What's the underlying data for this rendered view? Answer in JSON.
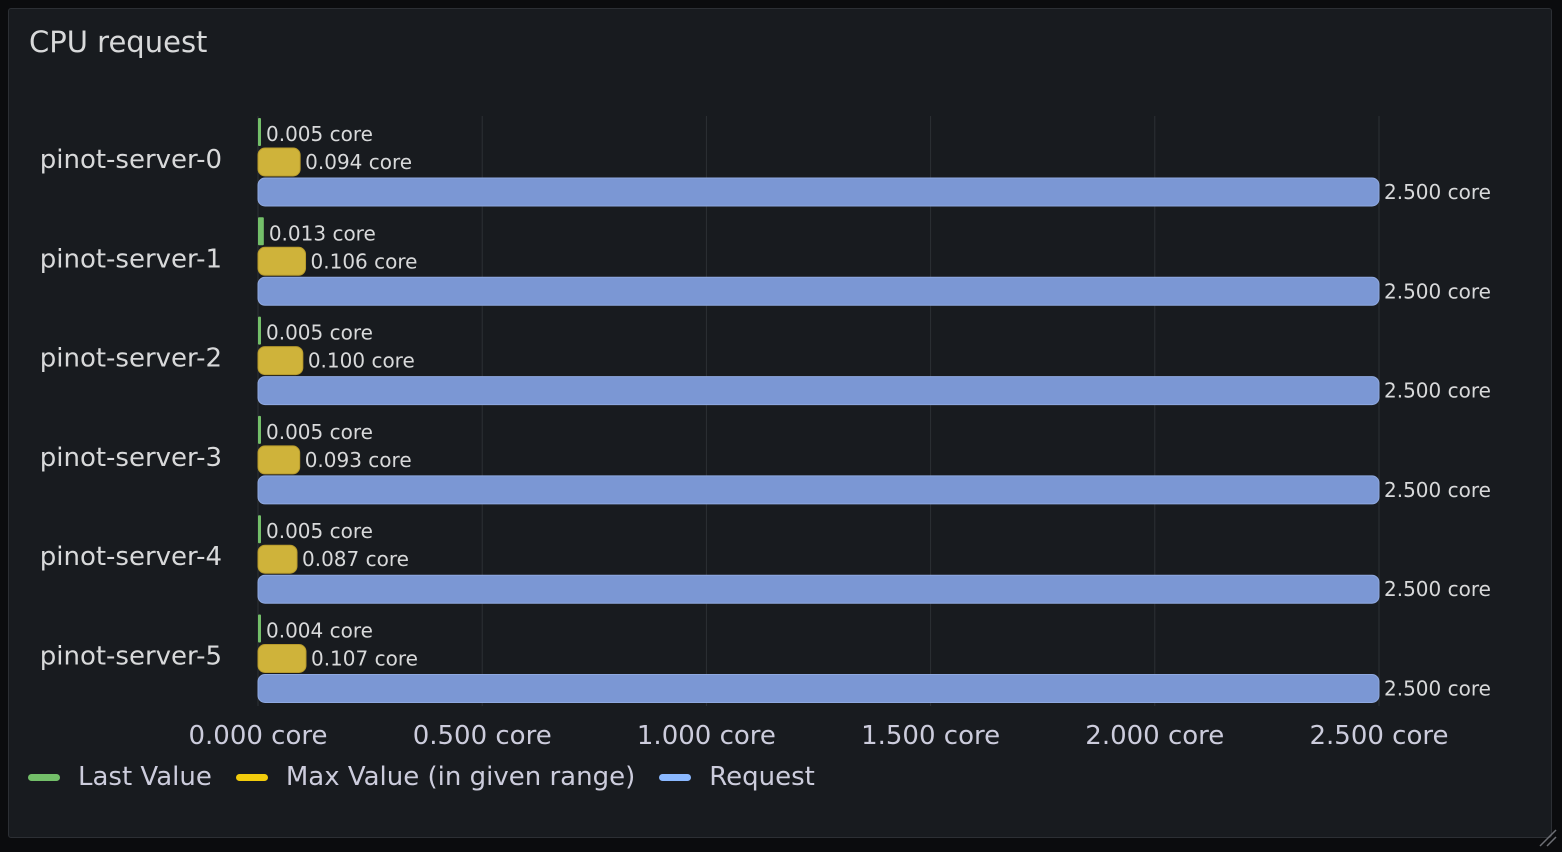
{
  "panel": {
    "title": "CPU request"
  },
  "colors": {
    "last_value": "#73bf69",
    "max_value": "#cfb33a",
    "request": "#7b97d4",
    "grid": "#2d3035",
    "text": "#ccccdc"
  },
  "legend": [
    {
      "label": "Last Value",
      "color": "#73bf69"
    },
    {
      "label": "Max Value (in given range)",
      "color": "#f2cc0c"
    },
    {
      "label": "Request",
      "color": "#8ab8ff"
    }
  ],
  "chart_data": {
    "type": "bar",
    "orientation": "horizontal",
    "title": "CPU request",
    "unit": "core",
    "categories": [
      "pinot-server-0",
      "pinot-server-1",
      "pinot-server-2",
      "pinot-server-3",
      "pinot-server-4",
      "pinot-server-5"
    ],
    "series": [
      {
        "name": "Last Value",
        "values": [
          0.005,
          0.013,
          0.005,
          0.005,
          0.005,
          0.004
        ],
        "labels": [
          "0.005 core",
          "0.013 core",
          "0.005 core",
          "0.005 core",
          "0.005 core",
          "0.004 core"
        ]
      },
      {
        "name": "Max Value (in given range)",
        "values": [
          0.094,
          0.106,
          0.1,
          0.093,
          0.087,
          0.107
        ],
        "labels": [
          "0.094 core",
          "0.106 core",
          "0.100 core",
          "0.093 core",
          "0.087 core",
          "0.107 core"
        ]
      },
      {
        "name": "Request",
        "values": [
          2.5,
          2.5,
          2.5,
          2.5,
          2.5,
          2.5
        ],
        "labels": [
          "2.500 core",
          "2.500 core",
          "2.500 core",
          "2.500 core",
          "2.500 core",
          "2.500 core"
        ]
      }
    ],
    "xlim": [
      0,
      2.5
    ],
    "xticks": [
      0,
      0.5,
      1.0,
      1.5,
      2.0,
      2.5
    ],
    "xtick_labels": [
      "0.000 core",
      "0.500 core",
      "1.000 core",
      "1.500 core",
      "2.000 core",
      "2.500 core"
    ],
    "grid": true,
    "legend_position": "bottom-left"
  }
}
